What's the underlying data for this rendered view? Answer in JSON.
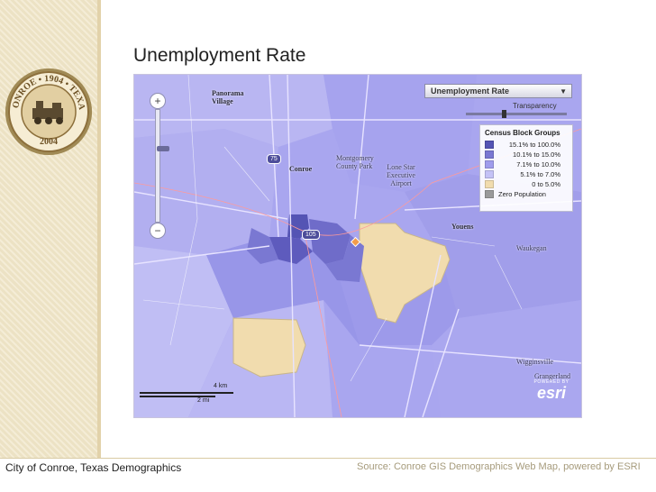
{
  "slide": {
    "title": "Unemployment Rate",
    "footer_left": "City of Conroe, Texas Demographics",
    "footer_right": "Source: Conroe  GIS Demographics Web Map, powered by ESRI"
  },
  "logo": {
    "top_text": "CONROE • 1904 • TEXAS",
    "bottom_text": "2004",
    "icon": "locomotive-seal-icon"
  },
  "map": {
    "layer_selector": "Unemployment Rate",
    "transparency_label": "Transparency",
    "legend": {
      "title": "Census Block Groups",
      "items": [
        {
          "label": "15.1% to 100.0%",
          "color": "#5454b4"
        },
        {
          "label": "10.1% to 15.0%",
          "color": "#7a78d2"
        },
        {
          "label": "7.1% to 10.0%",
          "color": "#9f9cec"
        },
        {
          "label": "5.1% to 7.0%",
          "color": "#c4c2f6"
        },
        {
          "label": "0 to 5.0%",
          "color": "#f1dcae"
        },
        {
          "label": "Zero Population",
          "color": "#9a9a9a"
        }
      ]
    },
    "places": {
      "panorama": "Panorama\nVillage",
      "conroe": "Conroe",
      "montgomery": "Montgomery\nCounty Park",
      "lonestar": "Lone Star\nExecutive\nAirport",
      "youens": "Youens",
      "waukegan": "Waukegan",
      "wigginsville": "Wigginsville",
      "grangerland": "Grangerland"
    },
    "shields": {
      "hwy75": "75",
      "hwy105": "105"
    },
    "scale": {
      "km": "4 km",
      "mi": "2 mi"
    },
    "esri": {
      "powered": "POWERED BY",
      "brand": "esri"
    },
    "zoom": {
      "plus": "+",
      "minus": "−"
    }
  }
}
